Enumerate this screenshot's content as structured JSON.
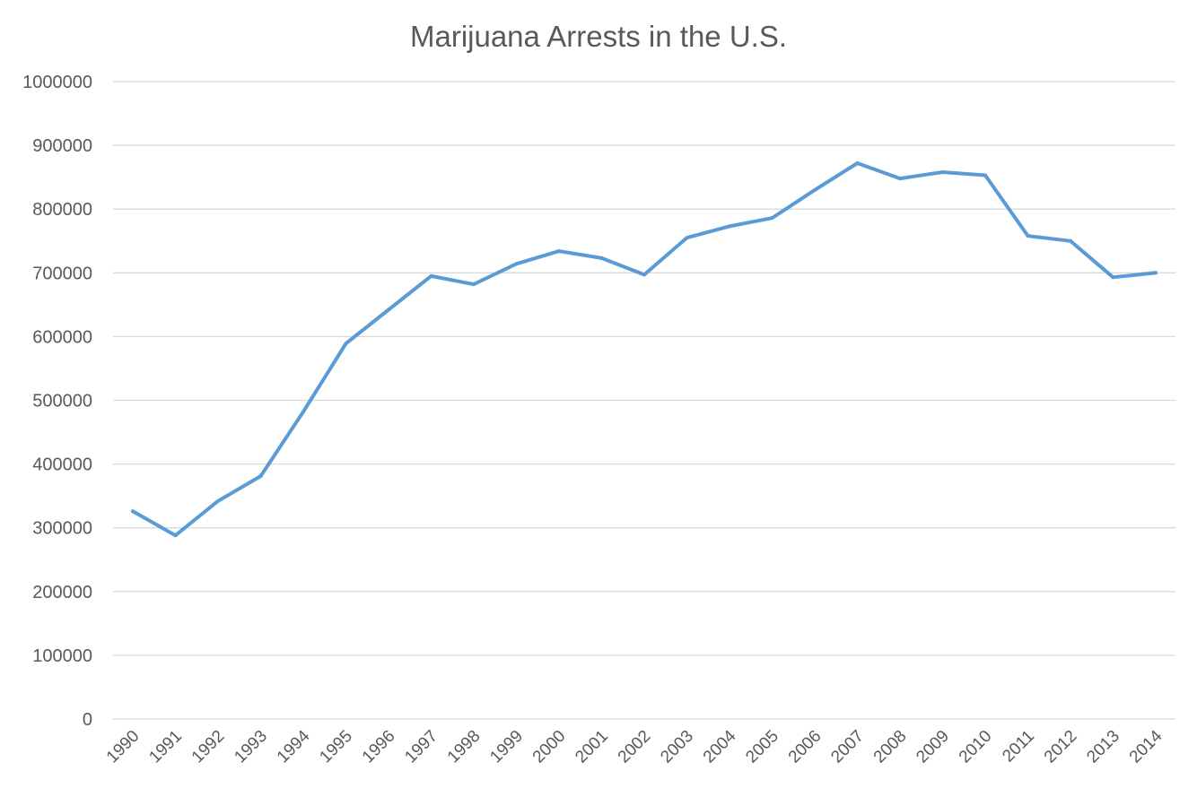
{
  "chart_data": {
    "type": "line",
    "title": "Marijuana Arrests in the U.S.",
    "xlabel": "",
    "ylabel": "",
    "ylim": [
      0,
      1000000
    ],
    "yticks": [
      "0",
      "100000",
      "200000",
      "300000",
      "400000",
      "500000",
      "600000",
      "700000",
      "800000",
      "900000",
      "1000000"
    ],
    "categories": [
      "1990",
      "1991",
      "1992",
      "1993",
      "1994",
      "1995",
      "1996",
      "1997",
      "1998",
      "1999",
      "2000",
      "2001",
      "2002",
      "2003",
      "2004",
      "2005",
      "2006",
      "2007",
      "2008",
      "2009",
      "2010",
      "2011",
      "2012",
      "2013",
      "2014"
    ],
    "series": [
      {
        "color": "#5b9bd5",
        "values": [
          326000,
          288000,
          342000,
          381000,
          482000,
          589000,
          642000,
          695000,
          682000,
          714000,
          734000,
          723000,
          697000,
          755000,
          773000,
          786000,
          830000,
          872000,
          848000,
          858000,
          853000,
          758000,
          750000,
          693000,
          700000
        ]
      }
    ],
    "grid": true,
    "legend": "none"
  }
}
